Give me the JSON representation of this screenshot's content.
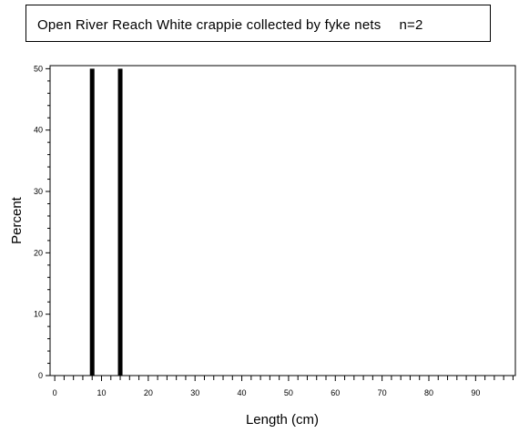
{
  "chart_data": {
    "type": "bar",
    "title": "Open River Reach White crappie collected by fyke nets",
    "subtitle": "n=2",
    "xlabel": "Length (cm)",
    "ylabel": "Percent",
    "xlim": [
      -1,
      98.5
    ],
    "ylim": [
      0,
      50.5
    ],
    "x_ticks": [
      0,
      10,
      20,
      30,
      40,
      50,
      60,
      70,
      80,
      90
    ],
    "y_ticks": [
      0,
      10,
      20,
      30,
      40,
      50
    ],
    "x": [
      8,
      14
    ],
    "values": [
      50,
      50
    ],
    "bar_color": "#000000",
    "grid": false
  }
}
